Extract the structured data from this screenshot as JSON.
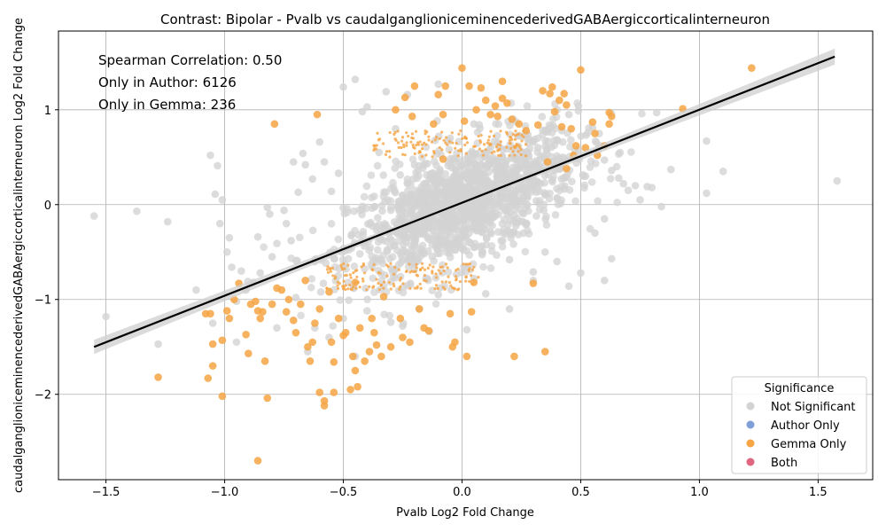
{
  "chart_data": {
    "type": "scatter",
    "title": "Contrast: Bipolar - Pvalb vs caudalganglioniceminencederivedGABAergiccorticalinterneuron",
    "xlabel": "Pvalb Log2 Fold Change",
    "ylabel": "caudalganglioniceminencederivedGABAergiccorticalinterneuron Log2 Fold Change",
    "xlim": [
      -1.7,
      1.73
    ],
    "ylim": [
      -2.9,
      1.83
    ],
    "xticks": [
      -1.5,
      -1.0,
      -0.5,
      0.0,
      0.5,
      1.0,
      1.5
    ],
    "xtick_labels": [
      "−1.5",
      "−1.0",
      "−0.5",
      "0.0",
      "0.5",
      "1.0",
      "1.5"
    ],
    "yticks": [
      -2,
      -1,
      0,
      1
    ],
    "ytick_labels": [
      "−2",
      "−1",
      "0",
      "1"
    ],
    "grid": true,
    "annotations": [
      "Spearman Correlation: 0.50",
      "Only in Author: 6126",
      "Only in Gemma: 236"
    ],
    "legend": {
      "title": "Significance",
      "placement": "bottom-right",
      "entries": [
        {
          "label": "Not Significant",
          "color": "#d3d3d3"
        },
        {
          "label": "Author Only",
          "color": "#7f9fd9"
        },
        {
          "label": "Gemma Only",
          "color": "#f6a444"
        },
        {
          "label": "Both",
          "color": "#e06680"
        }
      ]
    },
    "regression_line": {
      "x": [
        -1.55,
        1.57
      ],
      "y": [
        -1.5,
        1.56
      ],
      "color": "#000000"
    },
    "series": [
      {
        "name": "Not Significant",
        "color": "#d3d3d3",
        "points": [
          [
            -1.55,
            -0.12
          ],
          [
            -1.5,
            -1.18
          ],
          [
            -1.37,
            -0.07
          ],
          [
            -1.28,
            -1.47
          ],
          [
            -1.24,
            -0.18
          ],
          [
            -1.12,
            -0.9
          ],
          [
            -1.06,
            0.52
          ],
          [
            -1.03,
            0.41
          ],
          [
            -1.04,
            0.11
          ],
          [
            -1.01,
            0.05
          ],
          [
            -1.02,
            -0.2
          ],
          [
            -0.98,
            -0.35
          ],
          [
            -0.99,
            -0.5
          ],
          [
            -0.97,
            -0.66
          ],
          [
            -0.93,
            -0.7
          ],
          [
            -0.95,
            -1.02
          ],
          [
            -0.91,
            -0.9
          ],
          [
            -0.86,
            -0.34
          ],
          [
            -0.85,
            -0.72
          ],
          [
            -0.82,
            -0.03
          ],
          [
            -0.81,
            -0.1
          ],
          [
            -0.78,
            -0.41
          ],
          [
            -0.75,
            -0.06
          ],
          [
            -0.74,
            -0.2
          ],
          [
            -0.72,
            -0.38
          ],
          [
            -0.71,
            0.45
          ],
          [
            -0.69,
            0.13
          ],
          [
            -0.67,
            0.54
          ],
          [
            -0.66,
            0.42
          ],
          [
            -0.63,
            0.27
          ],
          [
            -0.6,
            0.66
          ],
          [
            -0.55,
            0.14
          ],
          [
            -0.52,
            0.33
          ],
          [
            -0.5,
            1.24
          ],
          [
            -0.45,
            1.32
          ],
          [
            -0.42,
            0.98
          ],
          [
            -0.4,
            1.03
          ],
          [
            -0.32,
            1.19
          ],
          [
            -0.28,
            0.8
          ],
          [
            -0.23,
            1.16
          ],
          [
            -0.1,
            1.27
          ],
          [
            -0.05,
            0.7
          ],
          [
            0.05,
            0.85
          ],
          [
            0.15,
            0.65
          ],
          [
            0.25,
            0.72
          ],
          [
            0.32,
            0.6
          ],
          [
            0.42,
            0.78
          ],
          [
            0.45,
            0.95
          ],
          [
            0.49,
            1.04
          ],
          [
            0.55,
            0.81
          ],
          [
            0.58,
            0.62
          ],
          [
            0.6,
            0.47
          ],
          [
            0.63,
            0.36
          ],
          [
            0.66,
            0.28
          ],
          [
            0.68,
            0.22
          ],
          [
            0.7,
            0.15
          ],
          [
            0.73,
            0.2
          ],
          [
            0.75,
            0.05
          ],
          [
            0.78,
            0.19
          ],
          [
            0.8,
            0.18
          ],
          [
            0.82,
            0.97
          ],
          [
            0.84,
            -0.02
          ],
          [
            0.88,
            0.37
          ],
          [
            1.03,
            0.67
          ],
          [
            1.03,
            0.12
          ],
          [
            1.1,
            0.35
          ],
          [
            1.58,
            0.25
          ],
          [
            0.63,
            -0.57
          ],
          [
            0.6,
            -0.8
          ],
          [
            0.5,
            -0.72
          ],
          [
            0.45,
            -0.86
          ],
          [
            0.4,
            -0.6
          ],
          [
            0.3,
            -0.71
          ],
          [
            0.2,
            -0.58
          ],
          [
            0.1,
            -0.94
          ],
          [
            0.05,
            -0.78
          ],
          [
            -0.1,
            -0.95
          ],
          [
            -0.18,
            -1.1
          ],
          [
            -0.25,
            -1.28
          ],
          [
            -0.3,
            -1.24
          ],
          [
            -0.4,
            -1.12
          ],
          [
            -0.5,
            -1.2
          ],
          [
            -0.56,
            -1.4
          ],
          [
            -0.62,
            -1.3
          ],
          [
            -0.7,
            -0.98
          ],
          [
            -0.78,
            -1.3
          ],
          [
            -0.65,
            -1.55
          ],
          [
            -0.45,
            -1.6
          ],
          [
            0.02,
            -1.32
          ],
          [
            0.2,
            -1.1
          ],
          [
            0.3,
            -0.8
          ],
          [
            0.35,
            -0.5
          ],
          [
            0.56,
            -0.3
          ],
          [
            0.6,
            -0.15
          ],
          [
            0.52,
            0.3
          ],
          [
            0.38,
            0.45
          ],
          [
            -0.2,
            0.42
          ],
          [
            -0.35,
            0.55
          ],
          [
            -0.58,
            0.45
          ],
          [
            -0.62,
            -0.6
          ],
          [
            -0.8,
            -0.55
          ],
          [
            -0.88,
            -0.82
          ],
          [
            -1.05,
            -1.25
          ],
          [
            -0.95,
            -1.45
          ],
          [
            -0.2,
            -0.62
          ],
          [
            0.12,
            0.45
          ],
          [
            0.05,
            -0.45
          ],
          [
            -0.05,
            0.2
          ]
        ]
      },
      {
        "name": "Gemma Only",
        "color": "#f6a444",
        "points": [
          [
            -1.28,
            -1.82
          ],
          [
            -1.08,
            -1.15
          ],
          [
            -1.06,
            -1.15
          ],
          [
            -1.05,
            -1.47
          ],
          [
            -1.05,
            -1.7
          ],
          [
            -1.07,
            -1.83
          ],
          [
            -1.01,
            -2.02
          ],
          [
            -1.01,
            -1.43
          ],
          [
            -0.99,
            -1.12
          ],
          [
            -0.98,
            -1.2
          ],
          [
            -0.96,
            -1.0
          ],
          [
            -0.94,
            -0.83
          ],
          [
            -0.91,
            -1.37
          ],
          [
            -0.9,
            -1.57
          ],
          [
            -0.89,
            -1.05
          ],
          [
            -0.87,
            -1.02
          ],
          [
            -0.86,
            -1.12
          ],
          [
            -0.85,
            -1.2
          ],
          [
            -0.84,
            -1.13
          ],
          [
            -0.83,
            -1.65
          ],
          [
            -0.82,
            -2.04
          ],
          [
            -0.86,
            -2.7
          ],
          [
            -0.8,
            -1.05
          ],
          [
            -0.78,
            -0.88
          ],
          [
            -0.79,
            0.85
          ],
          [
            -0.76,
            -0.9
          ],
          [
            -0.74,
            -1.13
          ],
          [
            -0.73,
            -1.0
          ],
          [
            -0.71,
            -1.22
          ],
          [
            -0.7,
            -1.35
          ],
          [
            -0.68,
            -1.05
          ],
          [
            -0.66,
            -0.8
          ],
          [
            -0.65,
            -1.5
          ],
          [
            -0.64,
            -1.65
          ],
          [
            -0.63,
            -1.45
          ],
          [
            -0.62,
            -1.25
          ],
          [
            -0.61,
            0.95
          ],
          [
            -0.6,
            -1.1
          ],
          [
            -0.6,
            -1.98
          ],
          [
            -0.58,
            -2.07
          ],
          [
            -0.58,
            -2.12
          ],
          [
            -0.56,
            -0.92
          ],
          [
            -0.55,
            -1.45
          ],
          [
            -0.54,
            -1.98
          ],
          [
            -0.54,
            -1.66
          ],
          [
            -0.52,
            -1.2
          ],
          [
            -0.5,
            -1.38
          ],
          [
            -0.49,
            -1.35
          ],
          [
            -0.47,
            -1.95
          ],
          [
            -0.46,
            -1.6
          ],
          [
            -0.45,
            -1.75
          ],
          [
            -0.44,
            -1.92
          ],
          [
            -0.43,
            -1.3
          ],
          [
            -0.41,
            -1.65
          ],
          [
            -0.39,
            -1.55
          ],
          [
            -0.38,
            -1.2
          ],
          [
            -0.37,
            -1.35
          ],
          [
            -0.36,
            -1.48
          ],
          [
            -0.34,
            -1.6
          ],
          [
            -0.33,
            -0.97
          ],
          [
            -0.3,
            -1.5
          ],
          [
            -0.28,
            1.0
          ],
          [
            -0.26,
            -1.2
          ],
          [
            -0.25,
            -1.4
          ],
          [
            -0.24,
            1.13
          ],
          [
            -0.22,
            -1.45
          ],
          [
            -0.21,
            0.93
          ],
          [
            -0.2,
            1.25
          ],
          [
            -0.18,
            -1.1
          ],
          [
            -0.16,
            -1.3
          ],
          [
            -0.14,
            -1.33
          ],
          [
            -0.12,
            0.85
          ],
          [
            -0.1,
            1.16
          ],
          [
            -0.08,
            0.95
          ],
          [
            -0.07,
            1.25
          ],
          [
            -0.05,
            -1.15
          ],
          [
            -0.04,
            -1.5
          ],
          [
            -0.03,
            -1.45
          ],
          [
            0.0,
            1.44
          ],
          [
            0.01,
            0.88
          ],
          [
            0.02,
            -1.6
          ],
          [
            0.03,
            1.25
          ],
          [
            0.04,
            -1.13
          ],
          [
            0.06,
            1.0
          ],
          [
            0.08,
            1.23
          ],
          [
            0.1,
            1.1
          ],
          [
            0.12,
            0.95
          ],
          [
            0.14,
            1.04
          ],
          [
            0.15,
            0.93
          ],
          [
            0.17,
            1.3
          ],
          [
            0.17,
            1.12
          ],
          [
            0.19,
            1.07
          ],
          [
            0.21,
            0.9
          ],
          [
            0.22,
            -1.6
          ],
          [
            0.24,
            0.85
          ],
          [
            0.27,
            0.78
          ],
          [
            0.3,
            -0.83
          ],
          [
            0.32,
            0.84
          ],
          [
            0.34,
            1.2
          ],
          [
            0.35,
            -1.55
          ],
          [
            0.37,
            1.17
          ],
          [
            0.38,
            1.24
          ],
          [
            0.39,
            0.98
          ],
          [
            0.41,
            1.1
          ],
          [
            0.42,
            0.82
          ],
          [
            0.43,
            1.17
          ],
          [
            0.44,
            1.05
          ],
          [
            0.46,
            0.8
          ],
          [
            0.47,
            0.52
          ],
          [
            0.48,
            0.62
          ],
          [
            0.5,
            1.42
          ],
          [
            0.52,
            0.6
          ],
          [
            0.55,
            0.87
          ],
          [
            0.56,
            0.75
          ],
          [
            0.57,
            0.52
          ],
          [
            0.6,
            0.62
          ],
          [
            0.62,
            0.85
          ],
          [
            0.62,
            0.97
          ],
          [
            0.63,
            0.93
          ],
          [
            0.93,
            1.01
          ],
          [
            1.22,
            1.44
          ],
          [
            0.44,
            0.38
          ],
          [
            0.36,
            0.45
          ],
          [
            -0.08,
            0.48
          ],
          [
            0.05,
            -0.82
          ],
          [
            -0.45,
            -0.82
          ]
        ]
      }
    ]
  }
}
